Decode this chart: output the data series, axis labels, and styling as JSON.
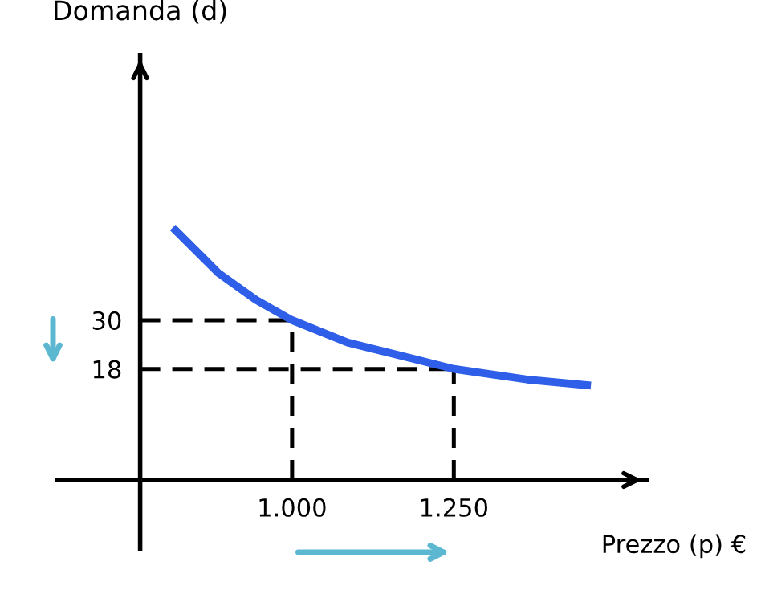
{
  "chart_data": {
    "type": "line",
    "xlabel": "Prezzo (p) €",
    "ylabel": "Domanda (d)",
    "xlim": [
      637,
      1548
    ],
    "ylim": [
      -26.2,
      95.2
    ],
    "xticks": [
      {
        "value": 1000,
        "label": "1.000"
      },
      {
        "value": 1250,
        "label": "1.250"
      }
    ],
    "yticks": [
      30,
      18
    ],
    "series": [
      {
        "color": "#2f5ee8",
        "x": [
          815.5,
          886,
          944,
          1000,
          1086,
          1250,
          1363,
          1462
        ],
        "values": [
          52.8,
          41.6,
          35,
          30,
          24.5,
          18,
          15.4,
          13.9
        ]
      }
    ],
    "ref_lines": [
      {
        "axis": "y",
        "value": 30,
        "color": "#000000",
        "line_style": "dashed"
      },
      {
        "axis": "y",
        "value": 18,
        "color": "#000000",
        "line_style": "dashed"
      },
      {
        "axis": "x",
        "value": 1000,
        "color": "#000000",
        "line_style": "dashed"
      },
      {
        "axis": "x",
        "value": 1250,
        "color": "#000000",
        "line_style": "dashed"
      }
    ],
    "grid": false,
    "legend": false,
    "marker": "none",
    "line_style": "solid"
  }
}
